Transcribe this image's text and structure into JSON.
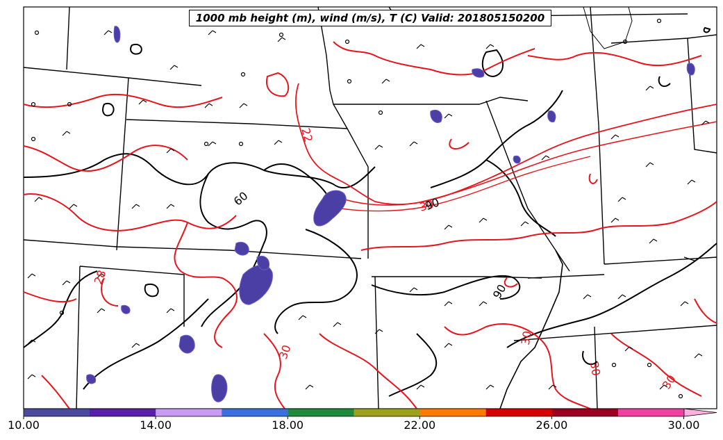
{
  "title": "1000 mb height (m), wind (m/s), T (C) Valid: 201805150200",
  "contour_labels": {
    "temperature": [
      "22",
      "30",
      "30",
      "30",
      "30",
      "30",
      "28"
    ],
    "height": [
      "60",
      "90",
      "90"
    ]
  },
  "contour_colors": {
    "height": "#000000",
    "temperature": "#e8141c",
    "shaded": "#4b3fa6"
  },
  "colorbar": {
    "min": 10,
    "max": 31,
    "extend": "max",
    "tick_labels": [
      "10.00",
      "14.00",
      "18.00",
      "22.00",
      "26.00",
      "30.00"
    ],
    "colors": [
      "#4a4a9e",
      "#5a1faa",
      "#c79bf2",
      "#3a6fe0",
      "#1e8a3c",
      "#9ca21c",
      "#ff7a00",
      "#d50000",
      "#9b0020",
      "#f040a0",
      "#ffb0e0"
    ]
  }
}
